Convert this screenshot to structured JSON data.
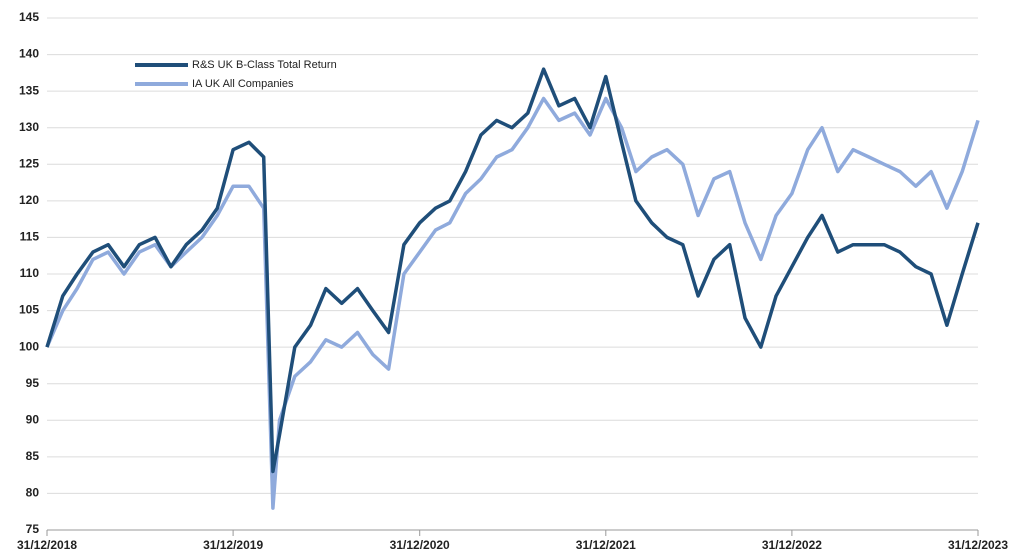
{
  "chart_data": {
    "type": "line",
    "x": [
      "31/12/2018",
      "31/01/2019",
      "28/02/2019",
      "31/03/2019",
      "30/04/2019",
      "31/05/2019",
      "30/06/2019",
      "31/07/2019",
      "31/08/2019",
      "30/09/2019",
      "31/10/2019",
      "30/11/2019",
      "31/12/2019",
      "31/01/2020",
      "29/02/2020",
      "18/03/2020",
      "31/03/2020",
      "30/04/2020",
      "31/05/2020",
      "30/06/2020",
      "31/07/2020",
      "31/08/2020",
      "30/09/2020",
      "31/10/2020",
      "30/11/2020",
      "31/12/2020",
      "31/01/2021",
      "28/02/2021",
      "31/03/2021",
      "30/04/2021",
      "31/05/2021",
      "30/06/2021",
      "31/07/2021",
      "31/08/2021",
      "30/09/2021",
      "31/10/2021",
      "30/11/2021",
      "31/12/2021",
      "31/01/2022",
      "28/02/2022",
      "31/03/2022",
      "30/04/2022",
      "31/05/2022",
      "30/06/2022",
      "31/07/2022",
      "31/08/2022",
      "30/09/2022",
      "31/10/2022",
      "30/11/2022",
      "31/12/2022",
      "31/01/2023",
      "28/02/2023",
      "31/03/2023",
      "30/04/2023",
      "31/05/2023",
      "30/06/2023",
      "31/07/2023",
      "31/08/2023",
      "30/09/2023",
      "31/10/2023",
      "30/11/2023",
      "31/12/2023"
    ],
    "series": [
      {
        "name": "R&S UK B-Class Total Return",
        "color": "#1f4e79",
        "values": [
          100,
          107,
          110,
          113,
          114,
          111,
          114,
          115,
          111,
          114,
          116,
          119,
          127,
          128,
          126,
          83,
          88,
          100,
          103,
          108,
          106,
          108,
          105,
          102,
          114,
          117,
          119,
          120,
          124,
          129,
          131,
          130,
          132,
          138,
          133,
          134,
          130,
          137,
          128,
          120,
          117,
          115,
          114,
          107,
          112,
          114,
          104,
          100,
          107,
          111,
          115,
          118,
          113,
          114,
          114,
          114,
          113,
          111,
          110,
          103,
          110,
          117
        ]
      },
      {
        "name": "IA UK All Companies",
        "color": "#8faadc",
        "values": [
          100,
          105,
          108,
          112,
          113,
          110,
          113,
          114,
          111,
          113,
          115,
          118,
          122,
          122,
          119,
          78,
          90,
          96,
          98,
          101,
          100,
          102,
          99,
          97,
          110,
          113,
          116,
          117,
          121,
          123,
          126,
          127,
          130,
          134,
          131,
          132,
          129,
          134,
          130,
          124,
          126,
          127,
          125,
          118,
          123,
          124,
          117,
          112,
          118,
          121,
          127,
          130,
          124,
          127,
          126,
          125,
          124,
          122,
          124,
          119,
          124,
          131
        ]
      }
    ],
    "xlim": [
      "31/12/2018",
      "31/12/2023"
    ],
    "xticks": [
      "31/12/2018",
      "31/12/2019",
      "31/12/2020",
      "31/12/2021",
      "31/12/2022",
      "31/12/2023"
    ],
    "ylim": [
      75,
      145
    ],
    "yticks": [
      75,
      80,
      85,
      90,
      95,
      100,
      105,
      110,
      115,
      120,
      125,
      130,
      135,
      140,
      145
    ],
    "grid": true
  }
}
